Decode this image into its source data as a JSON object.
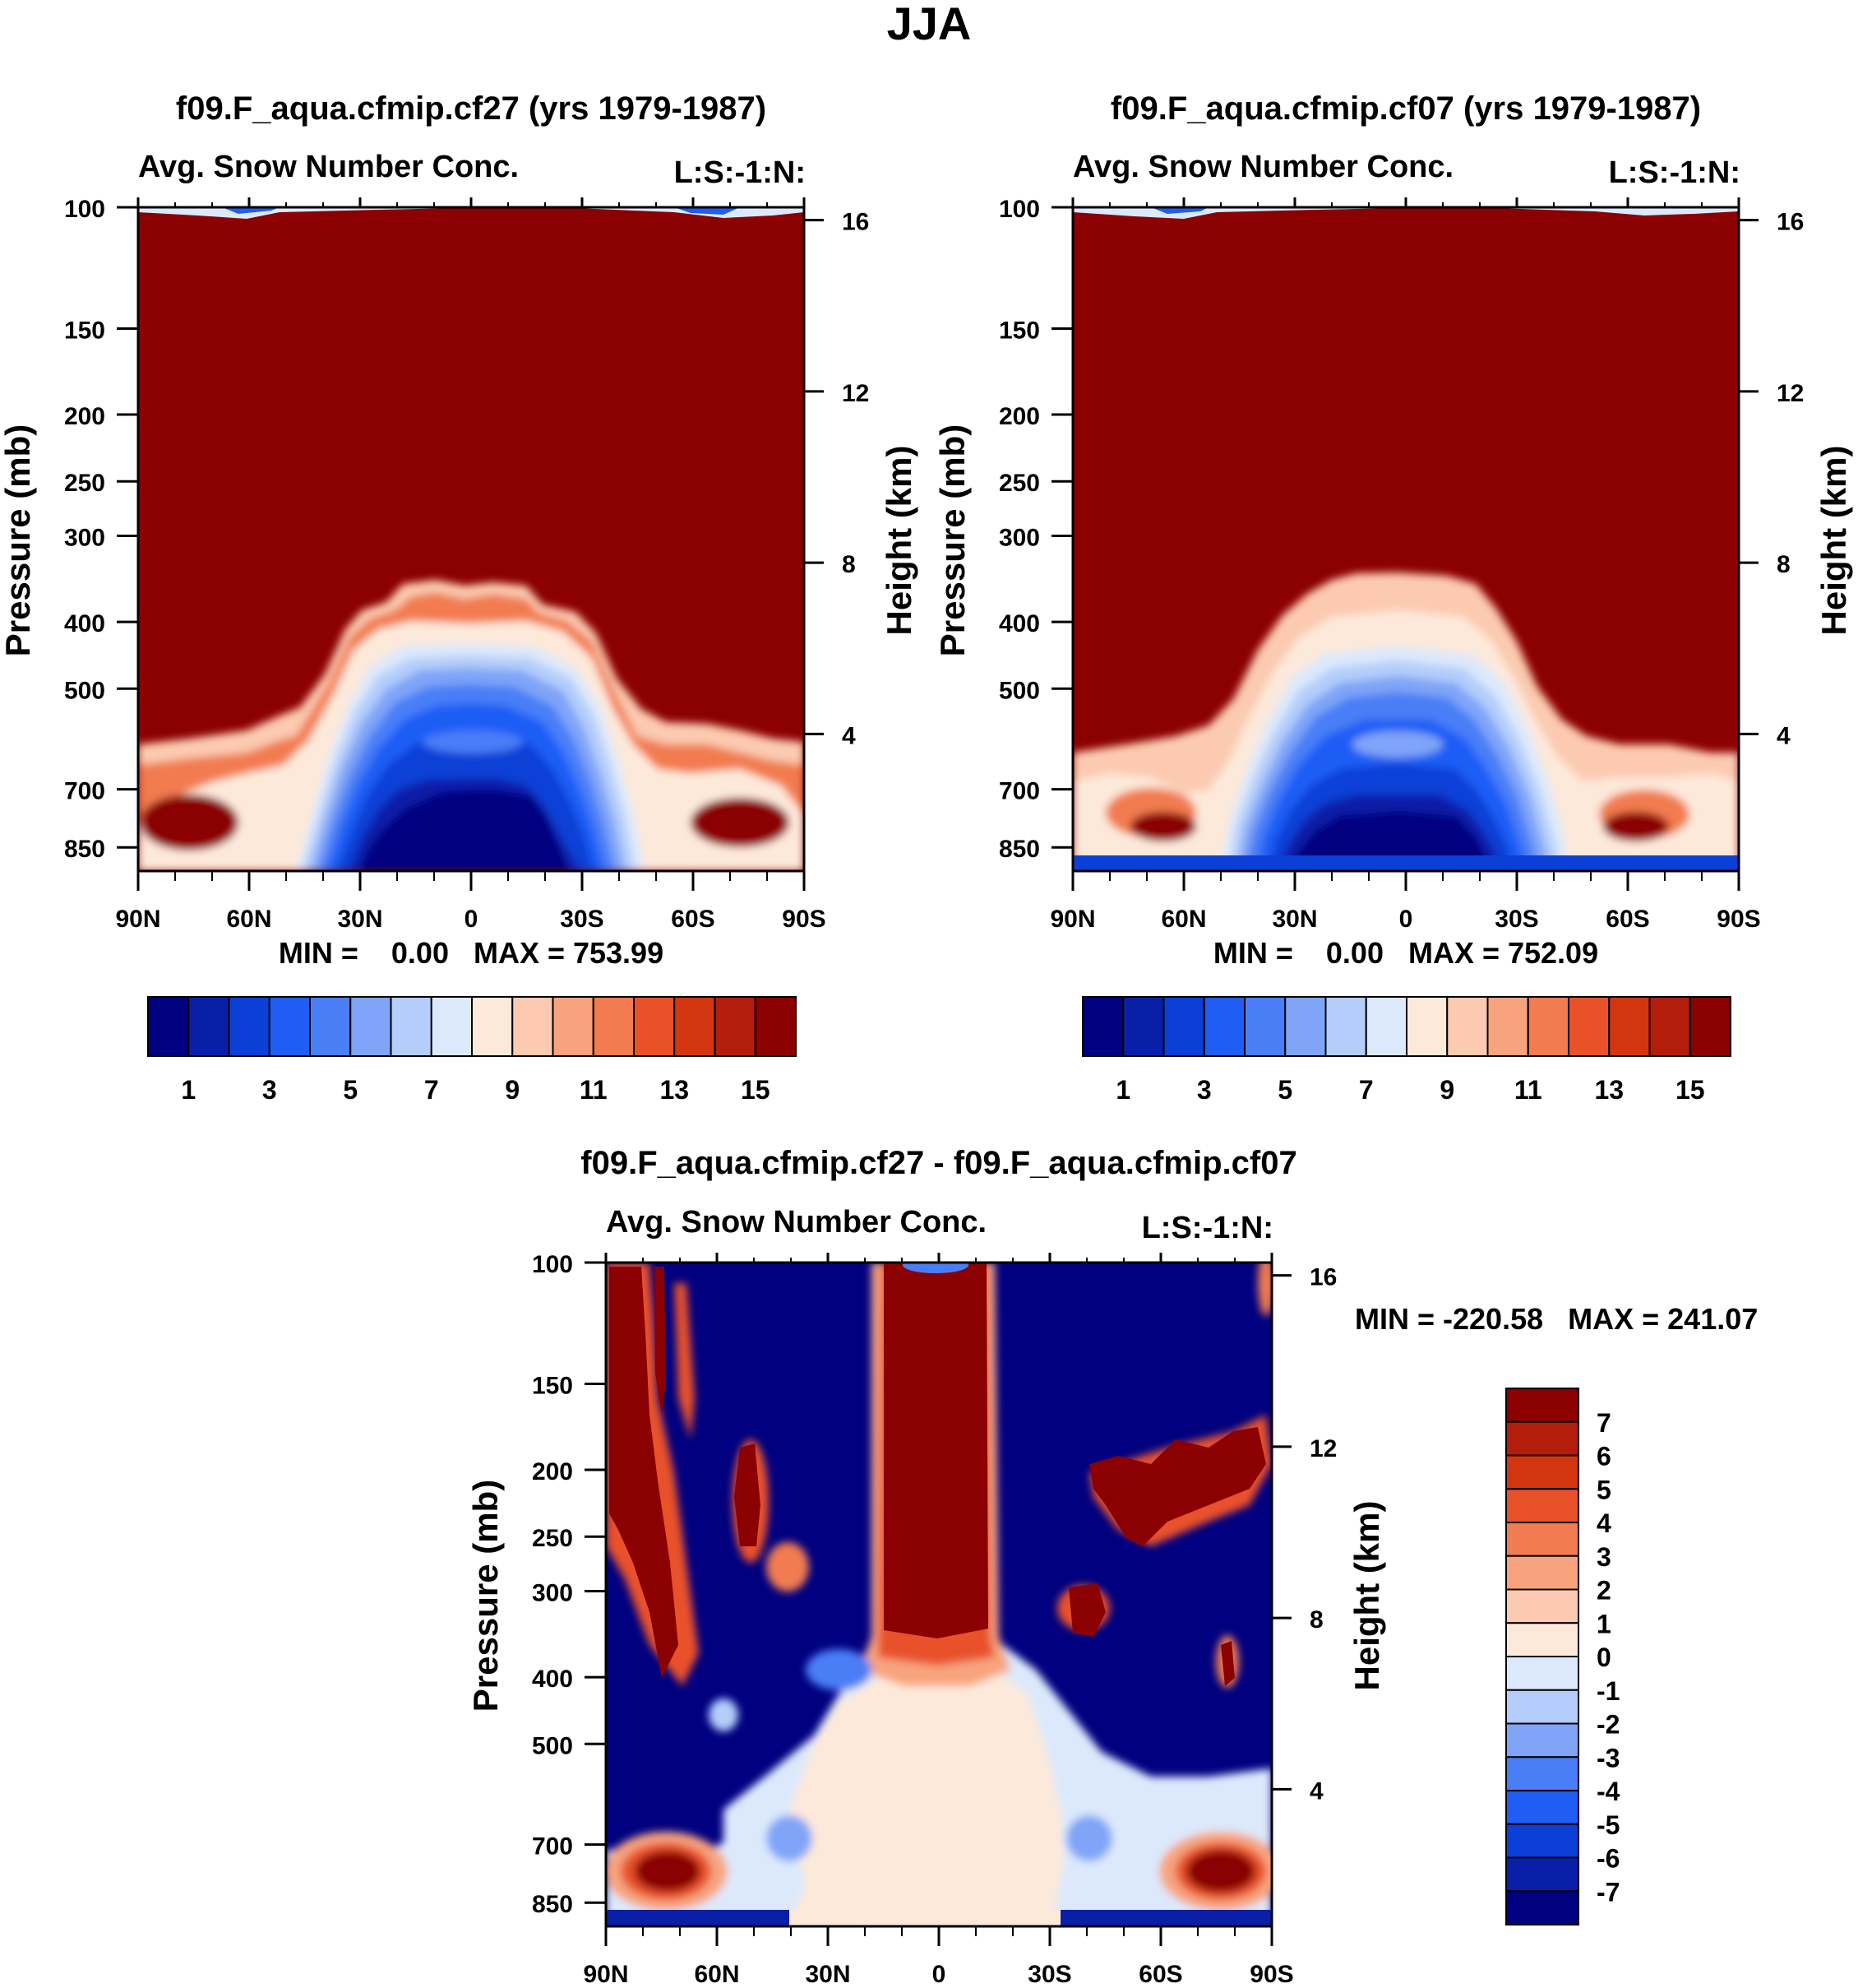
{
  "figure_title": "JJA",
  "colors": {
    "abs_palette": [
      "#000080",
      "#0a1fa8",
      "#0b3fd6",
      "#1f5df5",
      "#4a7ef7",
      "#7fa4f8",
      "#b4cdfa",
      "#dce9fc",
      "#fde9da",
      "#fbcab0",
      "#f7a47e",
      "#f27b50",
      "#e95129",
      "#d33510",
      "#b31e0c",
      "#8b0000"
    ],
    "diff_palette": [
      "#000080",
      "#0a1fa8",
      "#0b3fd6",
      "#1f5df5",
      "#4a7ef7",
      "#7fa4f8",
      "#b4cdfa",
      "#dce9fc",
      "#fde9da",
      "#fbcab0",
      "#f7a47e",
      "#f27b50",
      "#e95129",
      "#d33510",
      "#b31e0c",
      "#8b0000"
    ]
  },
  "chart_data": [
    {
      "id": "top_left",
      "type": "heatmap",
      "title": "f09.F_aqua.cfmip.cf27 (yrs 1979-1987)",
      "subtitle_left": "Avg. Snow Number Conc.",
      "subtitle_right": "L:S:-1:N:",
      "ylabel": "Pressure (mb)",
      "y2label": "Height (km)",
      "x_ticks": [
        "90N",
        "60N",
        "30N",
        "0",
        "30S",
        "60S",
        "90S"
      ],
      "x_tick_values": [
        -90,
        -60,
        -30,
        0,
        30,
        60,
        90
      ],
      "y_ticks": [
        "100",
        "150",
        "200",
        "250",
        "300",
        "400",
        "500",
        "700",
        "850"
      ],
      "y_tick_values": [
        100,
        150,
        200,
        250,
        300,
        400,
        500,
        700,
        850
      ],
      "y2_ticks": [
        "16",
        "12",
        "8",
        "4"
      ],
      "y2_tick_values": [
        16,
        12,
        8,
        4
      ],
      "ylim": [
        100,
        920
      ],
      "stats": "MIN =    0.00   MAX = 753.99",
      "colorbar_labels": [
        "1",
        "3",
        "5",
        "7",
        "9",
        "11",
        "13",
        "15"
      ],
      "colorbar_levels": [
        1,
        2,
        3,
        4,
        5,
        6,
        7,
        8,
        9,
        10,
        11,
        12,
        13,
        14,
        15
      ]
    },
    {
      "id": "top_right",
      "type": "heatmap",
      "title": "f09.F_aqua.cfmip.cf07 (yrs 1979-1987)",
      "subtitle_left": "Avg. Snow Number Conc.",
      "subtitle_right": "L:S:-1:N:",
      "ylabel": "Pressure (mb)",
      "y2label": "Height (km)",
      "x_ticks": [
        "90N",
        "60N",
        "30N",
        "0",
        "30S",
        "60S",
        "90S"
      ],
      "x_tick_values": [
        -90,
        -60,
        -30,
        0,
        30,
        60,
        90
      ],
      "y_ticks": [
        "100",
        "150",
        "200",
        "250",
        "300",
        "400",
        "500",
        "700",
        "850"
      ],
      "y_tick_values": [
        100,
        150,
        200,
        250,
        300,
        400,
        500,
        700,
        850
      ],
      "y2_ticks": [
        "16",
        "12",
        "8",
        "4"
      ],
      "y2_tick_values": [
        16,
        12,
        8,
        4
      ],
      "ylim": [
        100,
        920
      ],
      "stats": "MIN =    0.00   MAX = 752.09",
      "colorbar_labels": [
        "1",
        "3",
        "5",
        "7",
        "9",
        "11",
        "13",
        "15"
      ],
      "colorbar_levels": [
        1,
        2,
        3,
        4,
        5,
        6,
        7,
        8,
        9,
        10,
        11,
        12,
        13,
        14,
        15
      ]
    },
    {
      "id": "bottom_diff",
      "type": "heatmap",
      "title": "f09.F_aqua.cfmip.cf27 - f09.F_aqua.cfmip.cf07",
      "subtitle_left": "Avg. Snow Number Conc.",
      "subtitle_right": "L:S:-1:N:",
      "ylabel": "Pressure (mb)",
      "y2label": "Height (km)",
      "x_ticks": [
        "90N",
        "60N",
        "30N",
        "0",
        "30S",
        "60S",
        "90S"
      ],
      "x_tick_values": [
        -90,
        -60,
        -30,
        0,
        30,
        60,
        90
      ],
      "y_ticks": [
        "100",
        "150",
        "200",
        "250",
        "300",
        "400",
        "500",
        "700",
        "850"
      ],
      "y_tick_values": [
        100,
        150,
        200,
        250,
        300,
        400,
        500,
        700,
        850
      ],
      "y2_ticks": [
        "16",
        "12",
        "8",
        "4"
      ],
      "y2_tick_values": [
        16,
        12,
        8,
        4
      ],
      "ylim": [
        100,
        920
      ],
      "stats": "MIN = -220.58   MAX = 241.07",
      "colorbar_labels": [
        "7",
        "6",
        "5",
        "4",
        "3",
        "2",
        "1",
        "0",
        "-1",
        "-2",
        "-3",
        "-4",
        "-5",
        "-6",
        "-7"
      ],
      "colorbar_levels": [
        -7,
        -6,
        -5,
        -4,
        -3,
        -2,
        -1,
        0,
        1,
        2,
        3,
        4,
        5,
        6,
        7
      ]
    }
  ]
}
